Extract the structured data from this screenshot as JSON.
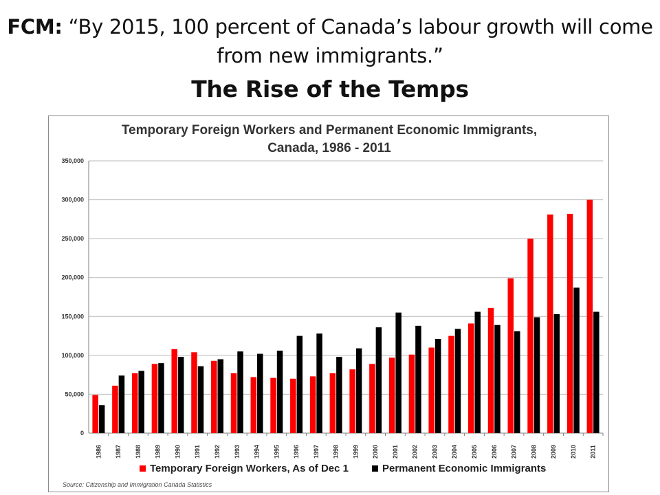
{
  "slide": {
    "headline_prefix": "FCM:",
    "headline_quote": "“By 2015, 100 percent of Canada’s labour growth will come from new immigrants.”",
    "subtitle": "The Rise of the Temps"
  },
  "source_note": "Source:  Citizenship and Immigration Canada Statistics",
  "chart_data": {
    "type": "bar",
    "title": "Temporary Foreign Workers and Permanent Economic Immigrants, Canada, 1986 - 2011",
    "title_lines": [
      "Temporary Foreign Workers and Permanent Economic Immigrants,",
      "Canada, 1986 - 2011"
    ],
    "xlabel": "",
    "ylabel": "",
    "ylim": [
      0,
      350000
    ],
    "yticks": [
      0,
      50000,
      100000,
      150000,
      200000,
      250000,
      300000,
      350000
    ],
    "ytick_labels": [
      "0",
      "50,000",
      "100,000",
      "150,000",
      "200,000",
      "250,000",
      "300,000",
      "350,000"
    ],
    "grid": true,
    "legend_position": "bottom",
    "categories": [
      "1986",
      "1987",
      "1988",
      "1989",
      "1990",
      "1991",
      "1992",
      "1993",
      "1994",
      "1995",
      "1996",
      "1997",
      "1998",
      "1999",
      "2000",
      "2001",
      "2002",
      "2003",
      "2004",
      "2005",
      "2006",
      "2007",
      "2008",
      "2009",
      "2010",
      "2011"
    ],
    "series": [
      {
        "name": "Temporary Foreign Workers, As of Dec 1",
        "color": "#ff0000",
        "values": [
          49000,
          61000,
          77000,
          89000,
          108000,
          104000,
          93000,
          77000,
          72000,
          71000,
          70000,
          73000,
          77000,
          82000,
          89000,
          97000,
          101000,
          110000,
          125000,
          141000,
          161000,
          199000,
          250000,
          281000,
          282000,
          300000
        ]
      },
      {
        "name": "Permanent Economic Immigrants",
        "color": "#000000",
        "values": [
          36000,
          74000,
          80000,
          90000,
          98000,
          86000,
          95000,
          105000,
          102000,
          106000,
          125000,
          128000,
          98000,
          109000,
          136000,
          155000,
          138000,
          121000,
          134000,
          156000,
          139000,
          131000,
          149000,
          153000,
          187000,
          156000
        ]
      }
    ]
  }
}
